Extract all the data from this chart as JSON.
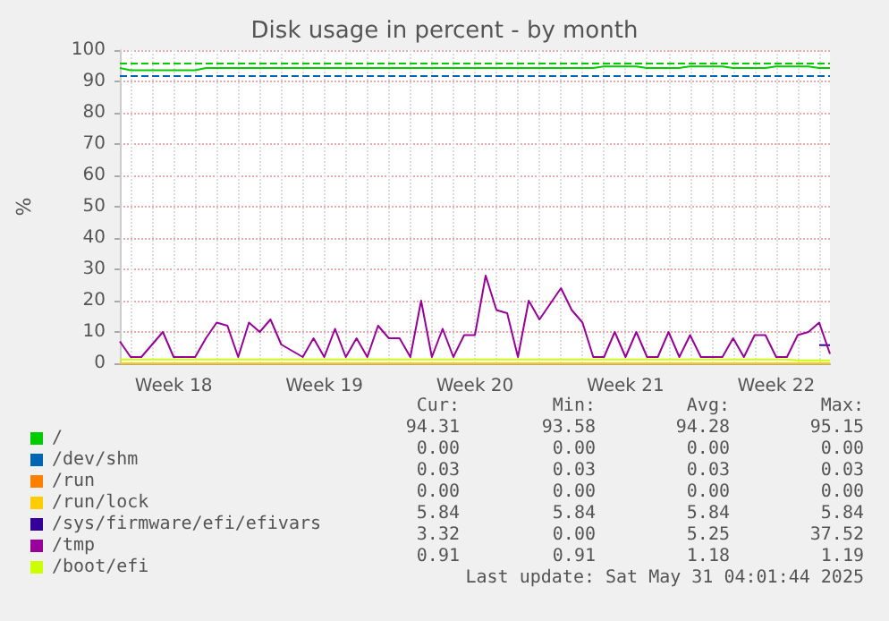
{
  "chart_data": {
    "type": "line",
    "title": "Disk usage in percent - by month",
    "ylabel": "%",
    "categories": [
      null,
      null,
      null,
      null,
      null,
      "Week 18",
      null,
      null,
      null,
      null,
      null,
      null,
      null,
      null,
      null,
      null,
      null,
      null,
      null,
      "Week 19",
      null,
      null,
      null,
      null,
      null,
      null,
      null,
      null,
      null,
      null,
      null,
      null,
      null,
      "Week 20",
      null,
      null,
      null,
      null,
      null,
      null,
      null,
      null,
      null,
      null,
      null,
      null,
      null,
      "Week 21",
      null,
      null,
      null,
      null,
      null,
      null,
      null,
      null,
      null,
      null,
      null,
      null,
      null,
      "Week 22",
      null,
      null,
      null,
      null,
      null
    ],
    "ylim": [
      0,
      100
    ],
    "yticks": [
      0,
      10,
      20,
      30,
      40,
      50,
      60,
      70,
      80,
      90,
      100
    ],
    "grid": true,
    "legend": "bottom left",
    "marker": "none",
    "line_style": "solid",
    "series": [
      {
        "name": "/",
        "color": "#00cc00",
        "values": [
          94.3,
          93.6,
          93.6,
          93.6,
          93.6,
          93.6,
          93.6,
          93.6,
          94.3,
          94.3,
          94.3,
          94.3,
          94.3,
          94.3,
          94.3,
          94.3,
          94.3,
          94.3,
          94.3,
          94.3,
          94.3,
          94.3,
          94.3,
          94.3,
          94.3,
          94.3,
          94.3,
          94.3,
          94.3,
          94.3,
          94.3,
          94.3,
          94.3,
          94.3,
          94.3,
          94.3,
          94.3,
          94.3,
          94.3,
          94.3,
          94.3,
          94.3,
          94.3,
          94.3,
          94.3,
          94.8,
          94.8,
          94.8,
          94.8,
          94.3,
          94.3,
          94.3,
          94.3,
          94.8,
          94.8,
          94.8,
          94.8,
          94.3,
          94.3,
          94.3,
          94.3,
          94.8,
          94.8,
          94.8,
          94.8,
          94.3,
          94.3
        ]
      },
      {
        "name": "/dev/shm",
        "color": "#0066b3",
        "values": [
          null,
          null,
          null,
          null,
          null,
          null,
          null,
          null,
          null,
          null,
          null,
          null,
          null,
          null,
          null,
          null,
          null,
          null,
          null,
          null,
          null,
          null,
          null,
          null,
          null,
          null,
          null,
          null,
          null,
          null,
          null,
          null,
          null,
          null,
          null,
          null,
          null,
          null,
          null,
          null,
          null,
          null,
          null,
          null,
          null,
          null,
          null,
          null,
          null,
          null,
          null,
          null,
          null,
          null,
          null,
          null,
          null,
          null,
          null,
          null,
          null,
          null,
          null,
          null,
          null,
          null,
          null
        ]
      },
      {
        "name": "/run",
        "color": "#ff8000",
        "values": [
          null,
          null,
          null,
          null,
          null,
          null,
          null,
          null,
          null,
          null,
          null,
          null,
          null,
          null,
          null,
          null,
          null,
          null,
          null,
          null,
          null,
          null,
          null,
          null,
          null,
          null,
          null,
          null,
          null,
          null,
          null,
          null,
          null,
          null,
          null,
          null,
          null,
          null,
          null,
          null,
          null,
          null,
          null,
          null,
          null,
          null,
          null,
          null,
          null,
          null,
          null,
          null,
          null,
          null,
          null,
          null,
          null,
          null,
          null,
          null,
          null,
          null,
          null,
          null,
          null,
          null,
          null
        ]
      },
      {
        "name": "/run/lock",
        "color": "#ffcc00",
        "values": [
          0,
          0,
          0,
          0,
          0,
          0,
          0,
          0,
          0,
          0,
          0,
          0,
          0,
          0,
          0,
          0,
          0,
          0,
          0,
          0,
          0,
          0,
          0,
          0,
          0,
          0,
          0,
          0,
          0,
          0,
          0,
          0,
          0,
          0,
          0,
          0,
          0,
          0,
          0,
          0,
          0,
          0,
          0,
          0,
          0,
          0,
          0,
          0,
          0,
          0,
          0,
          0,
          0,
          0,
          0,
          0,
          0,
          0,
          0,
          0,
          0,
          0,
          0,
          0,
          0,
          0,
          0
        ]
      },
      {
        "name": "/sys/firmware/efi/efivars",
        "color": "#330099",
        "values": [
          null,
          null,
          null,
          null,
          null,
          null,
          null,
          null,
          null,
          null,
          null,
          null,
          null,
          null,
          null,
          null,
          null,
          null,
          null,
          null,
          null,
          null,
          null,
          null,
          null,
          null,
          null,
          null,
          null,
          null,
          null,
          null,
          null,
          null,
          null,
          null,
          null,
          null,
          null,
          null,
          null,
          null,
          null,
          null,
          null,
          null,
          null,
          null,
          null,
          null,
          null,
          null,
          null,
          null,
          null,
          null,
          null,
          null,
          null,
          null,
          null,
          null,
          null,
          null,
          null,
          5.8,
          5.8
        ]
      },
      {
        "name": "/tmp",
        "color": "#990099",
        "values": [
          7,
          2,
          2,
          6,
          10,
          2,
          2,
          2,
          8,
          13,
          12,
          2,
          13,
          10,
          14,
          6,
          4,
          2,
          8,
          2,
          11,
          2,
          8,
          2,
          12,
          8,
          8,
          2,
          20,
          2,
          11,
          2,
          9,
          9,
          28,
          17,
          16,
          2,
          20,
          14,
          19,
          24,
          17,
          13,
          2,
          2,
          10,
          2,
          10,
          2,
          2,
          10,
          2,
          9,
          2,
          2,
          2,
          8,
          2,
          9,
          9,
          2,
          2,
          9,
          10,
          13,
          3
        ]
      },
      {
        "name": "/boot/efi",
        "color": "#ccff00",
        "values": [
          1.2,
          1.2,
          1.2,
          1.2,
          1.2,
          1.2,
          1.2,
          1.2,
          1.2,
          1.2,
          1.2,
          1.2,
          1.2,
          1.2,
          1.2,
          1.2,
          1.2,
          1.2,
          1.2,
          1.2,
          1.2,
          1.2,
          1.2,
          1.2,
          1.2,
          1.2,
          1.2,
          1.2,
          1.2,
          1.2,
          1.2,
          1.2,
          1.2,
          1.2,
          1.2,
          1.2,
          1.2,
          1.2,
          1.2,
          1.2,
          1.2,
          1.2,
          1.2,
          1.2,
          1.2,
          1.2,
          1.2,
          1.2,
          1.2,
          1.2,
          1.2,
          1.2,
          1.2,
          1.2,
          1.2,
          1.2,
          1.2,
          1.2,
          1.2,
          1.2,
          1.2,
          1.2,
          1.2,
          0.9,
          0.9,
          0.9,
          0.9
        ]
      }
    ],
    "ref_lines": [
      {
        "axis": "y",
        "value": 96,
        "color": "#00cc00",
        "line_style": "dashed"
      },
      {
        "axis": "y",
        "value": 92,
        "color": "#0066b3",
        "line_style": "dashed"
      }
    ],
    "annotations": [
      "Cur:",
      "Min:",
      "Avg:",
      "Max:",
      "94.31",
      "93.58",
      "94.28",
      "95.15",
      "0.00",
      "0.00",
      "0.00",
      "0.00",
      "0.03",
      "0.03",
      "0.03",
      "0.03",
      "0.00",
      "0.00",
      "0.00",
      "0.00",
      "5.84",
      "5.84",
      "5.84",
      "5.84",
      "3.32",
      "0.00",
      "5.25",
      "37.52",
      "0.91",
      "0.91",
      "1.18",
      "1.19",
      "Last update: Sat May 31 04:01:44 2025"
    ]
  }
}
